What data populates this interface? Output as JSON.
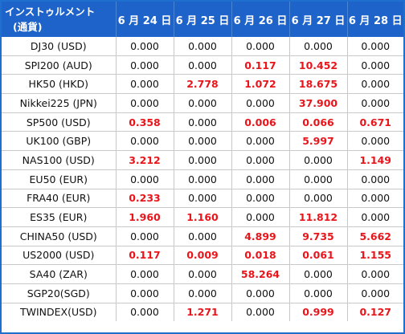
{
  "header": {
    "instrument_label": "インストゥルメント",
    "currency_label": "(通貨)",
    "dates": [
      "6 月 24 日",
      "6 月 25 日",
      "6 月 26 日",
      "6 月 27 日",
      "6 月 28 日"
    ]
  },
  "colors": {
    "header_bg": "#1e63c9",
    "highlight": "#e8151b",
    "normal": "#111111"
  },
  "rows": [
    {
      "name": "DJ30 (USD)",
      "values": [
        "0.000",
        "0.000",
        "0.000",
        "0.000",
        "0.000"
      ],
      "highlight": [
        false,
        false,
        false,
        false,
        false
      ]
    },
    {
      "name": "SPI200 (AUD)",
      "values": [
        "0.000",
        "0.000",
        "0.117",
        "10.452",
        "0.000"
      ],
      "highlight": [
        false,
        false,
        true,
        true,
        false
      ]
    },
    {
      "name": "HK50 (HKD)",
      "values": [
        "0.000",
        "2.778",
        "1.072",
        "18.675",
        "0.000"
      ],
      "highlight": [
        false,
        true,
        true,
        true,
        false
      ]
    },
    {
      "name": "Nikkei225 (JPN)",
      "values": [
        "0.000",
        "0.000",
        "0.000",
        "37.900",
        "0.000"
      ],
      "highlight": [
        false,
        false,
        false,
        true,
        false
      ]
    },
    {
      "name": "SP500 (USD)",
      "values": [
        "0.358",
        "0.000",
        "0.006",
        "0.066",
        "0.671"
      ],
      "highlight": [
        true,
        false,
        true,
        true,
        true
      ]
    },
    {
      "name": "UK100 (GBP)",
      "values": [
        "0.000",
        "0.000",
        "0.000",
        "5.997",
        "0.000"
      ],
      "highlight": [
        false,
        false,
        false,
        true,
        false
      ]
    },
    {
      "name": "NAS100 (USD)",
      "values": [
        "3.212",
        "0.000",
        "0.000",
        "0.000",
        "1.149"
      ],
      "highlight": [
        true,
        false,
        false,
        false,
        true
      ]
    },
    {
      "name": "EU50 (EUR)",
      "values": [
        "0.000",
        "0.000",
        "0.000",
        "0.000",
        "0.000"
      ],
      "highlight": [
        false,
        false,
        false,
        false,
        false
      ]
    },
    {
      "name": "FRA40 (EUR)",
      "values": [
        "0.233",
        "0.000",
        "0.000",
        "0.000",
        "0.000"
      ],
      "highlight": [
        true,
        false,
        false,
        false,
        false
      ]
    },
    {
      "name": "ES35 (EUR)",
      "values": [
        "1.960",
        "1.160",
        "0.000",
        "11.812",
        "0.000"
      ],
      "highlight": [
        true,
        true,
        false,
        true,
        false
      ]
    },
    {
      "name": "CHINA50 (USD)",
      "values": [
        "0.000",
        "0.000",
        "4.899",
        "9.735",
        "5.662"
      ],
      "highlight": [
        false,
        false,
        true,
        true,
        true
      ]
    },
    {
      "name": "US2000 (USD)",
      "values": [
        "0.117",
        "0.009",
        "0.018",
        "0.061",
        "1.155"
      ],
      "highlight": [
        true,
        true,
        true,
        true,
        true
      ]
    },
    {
      "name": "SA40 (ZAR)",
      "values": [
        "0.000",
        "0.000",
        "58.264",
        "0.000",
        "0.000"
      ],
      "highlight": [
        false,
        false,
        true,
        false,
        false
      ]
    },
    {
      "name": "SGP20(SGD)",
      "values": [
        "0.000",
        "0.000",
        "0.000",
        "0.000",
        "0.000"
      ],
      "highlight": [
        false,
        false,
        false,
        false,
        false
      ]
    },
    {
      "name": "TWINDEX(USD)",
      "values": [
        "0.000",
        "1.271",
        "0.000",
        "0.999",
        "0.127"
      ],
      "highlight": [
        false,
        true,
        false,
        true,
        true
      ]
    }
  ]
}
